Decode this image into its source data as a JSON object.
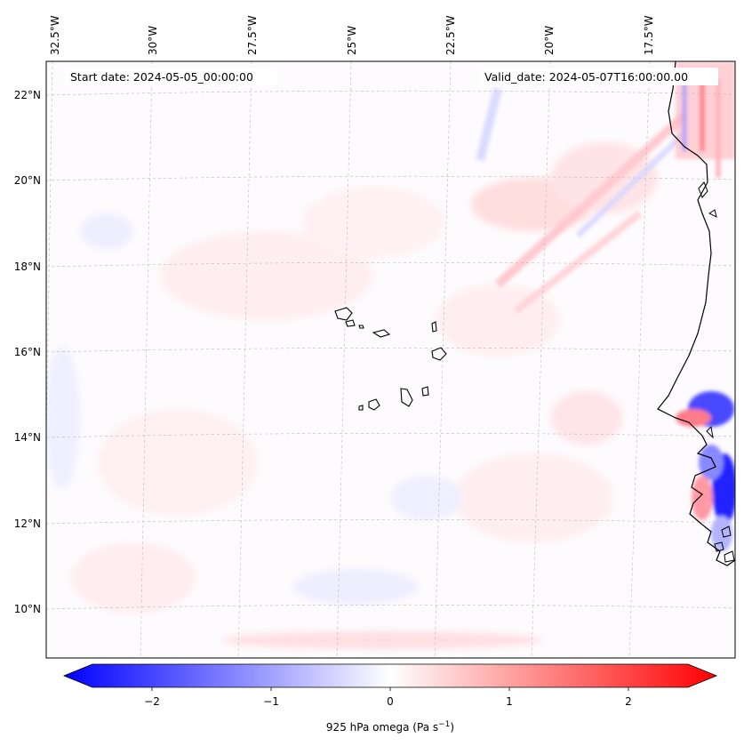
{
  "map": {
    "start_date": "Start date: 2024-05-05_00:00:00",
    "valid_date": "Valid_date: 2024-05-07T16:00:00.00",
    "lon_labels": [
      "32.5°W",
      "30°W",
      "27.5°W",
      "25°W",
      "22.5°W",
      "20°W",
      "17.5°W"
    ],
    "lat_labels": [
      "22°N",
      "20°N",
      "18°N",
      "16°N",
      "14°N",
      "12°N",
      "10°N"
    ],
    "features": [
      "Cape Verde islands",
      "West African coastline"
    ]
  },
  "colorbar": {
    "ticks": [
      "−2",
      "−1",
      "0",
      "1",
      "2"
    ],
    "range": [
      -2.6,
      2.6
    ],
    "label": "925 hPa omega (Pa s",
    "label_sup": "−1",
    "label_end": ")",
    "colors": {
      "min": "#0000ff",
      "mid": "#ffffff",
      "max": "#ff0000"
    }
  }
}
